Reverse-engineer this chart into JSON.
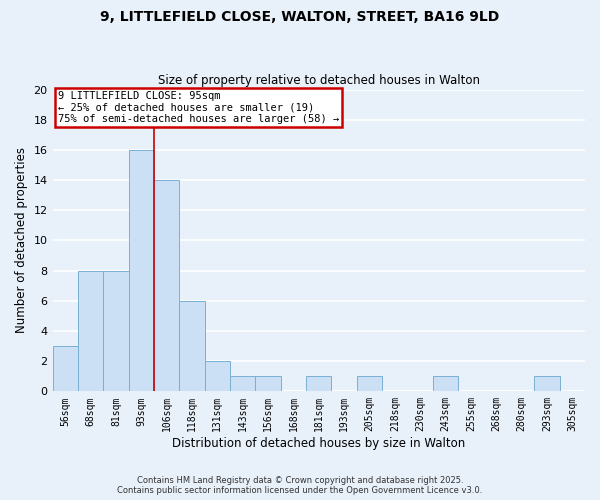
{
  "title": "9, LITTLEFIELD CLOSE, WALTON, STREET, BA16 9LD",
  "subtitle": "Size of property relative to detached houses in Walton",
  "xlabel": "Distribution of detached houses by size in Walton",
  "ylabel": "Number of detached properties",
  "bin_labels": [
    "56sqm",
    "68sqm",
    "81sqm",
    "93sqm",
    "106sqm",
    "118sqm",
    "131sqm",
    "143sqm",
    "156sqm",
    "168sqm",
    "181sqm",
    "193sqm",
    "205sqm",
    "218sqm",
    "230sqm",
    "243sqm",
    "255sqm",
    "268sqm",
    "280sqm",
    "293sqm",
    "305sqm"
  ],
  "bar_heights": [
    3,
    8,
    8,
    16,
    14,
    6,
    2,
    1,
    1,
    0,
    1,
    0,
    1,
    0,
    0,
    1,
    0,
    0,
    0,
    1,
    0
  ],
  "bar_color": "#cce0f5",
  "bar_edge_color": "#7ab0d4",
  "ylim": [
    0,
    20
  ],
  "yticks": [
    0,
    2,
    4,
    6,
    8,
    10,
    12,
    14,
    16,
    18,
    20
  ],
  "annotation_title": "9 LITTLEFIELD CLOSE: 95sqm",
  "annotation_line1": "← 25% of detached houses are smaller (19)",
  "annotation_line2": "75% of semi-detached houses are larger (58) →",
  "annotation_box_color": "#ffffff",
  "annotation_box_edge": "#cc0000",
  "footer_line1": "Contains HM Land Registry data © Crown copyright and database right 2025.",
  "footer_line2": "Contains public sector information licensed under the Open Government Licence v3.0.",
  "bg_color": "#e8f0fa",
  "grid_color": "#ffffff",
  "property_line_x": 3.5
}
